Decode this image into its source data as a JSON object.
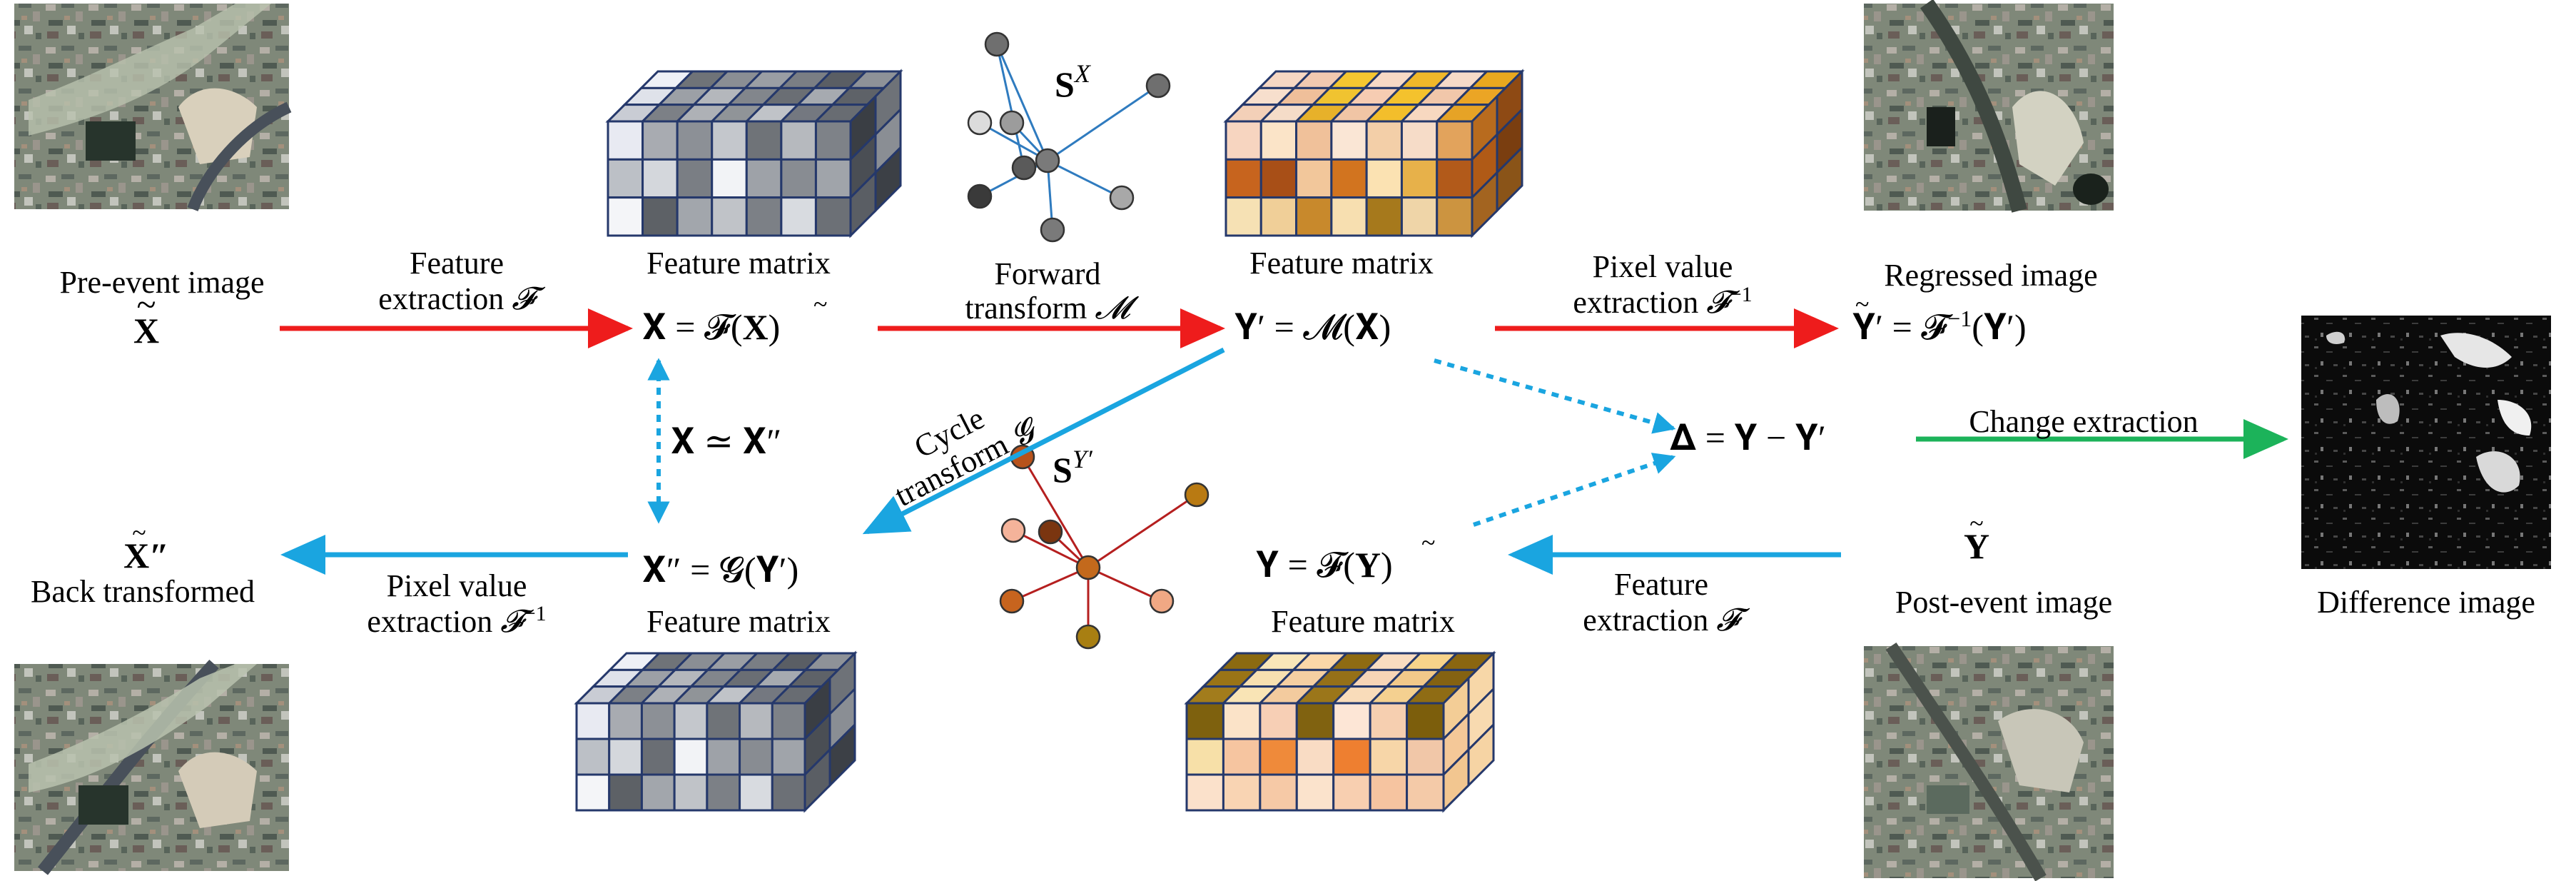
{
  "labels": {
    "pre_event_image": "Pre-event image",
    "post_event_image": "Post-event image",
    "back_transformed": "Back transformed",
    "regressed_image": "Regressed image",
    "difference_image": "Difference image",
    "feature_matrix": "Feature matrix",
    "feature_extraction_line1": "Feature",
    "feature_extraction_line2": "extraction",
    "feature_symbol": "𝓕",
    "pixel_value_line1": "Pixel value",
    "pixel_value_line2": "extraction",
    "pixel_symbol": "𝓕",
    "inverse_sup": "−1",
    "forward_line1": "Forward",
    "forward_line2": "transform",
    "forward_symbol": "𝓜",
    "cycle_line1": "Cycle",
    "cycle_line2": "transform",
    "cycle_symbol": "𝓖",
    "change_extraction": "Change extraction"
  },
  "math": {
    "x_tilde": "X",
    "y_tilde": "Y",
    "x_dd_tilde": "X″",
    "eq_x": "𝐗 = 𝓕(",
    "eq_x_arg": "X",
    "eq_x_close": ")",
    "eq_yprime": "𝐘′ = 𝓜(𝐗)",
    "eq_regressed_lhs": "𝐘′",
    "eq_regressed_rhs": " = 𝓕",
    "eq_regressed_arg": "(𝐘′)",
    "eq_delta": "𝚫 = 𝐘 − 𝐘′",
    "eq_sim": "𝐗 ≃ 𝐗″",
    "eq_xdd": "𝐗″ = 𝓖(𝐘′)",
    "eq_y": "𝐘 = 𝓕(",
    "eq_y_arg": "Y",
    "eq_y_close": ")",
    "s_x_base": "S",
    "s_x_sup": "X",
    "s_y_base": "S",
    "s_y_sup": "Y′"
  },
  "colors": {
    "red_arrow": "#ee1c1c",
    "blue_arrow": "#1aa5e0",
    "green_arrow": "#1cb35a",
    "cube_edge": "#25386b",
    "graph_blue_edge": "#2f7bbf",
    "graph_red_edge": "#b51f1f"
  },
  "matrices": {
    "grey_top": [
      [
        "#eef0f6",
        "#6f7378",
        "#8a8e94",
        "#9a9ea4",
        "#7a7e84",
        "#5a5e64",
        "#8e9298"
      ],
      [
        "#dfe2ea",
        "#9ca0a6",
        "#b4b7bc",
        "#82868c",
        "#6a6e74",
        "#a6aab0",
        "#5e6268"
      ],
      [
        "#c9ccd4",
        "#7c8086",
        "#aeb1b6",
        "#909498",
        "#c0c3c8",
        "#747880",
        "#686c72"
      ]
    ],
    "grey_front": [
      [
        "#e8eaf2",
        "#a8abb1",
        "#8c9096",
        "#c4c7cc",
        "#6f7378",
        "#b6b9be",
        "#7e8288"
      ],
      [
        "#bcc0c6",
        "#d4d7dc",
        "#7a7e84",
        "#f2f3f6",
        "#9ea2a8",
        "#888c92",
        "#a0a4aa"
      ],
      [
        "#f4f5f8",
        "#5d6166",
        "#a2a6ac",
        "#c0c3c8",
        "#7c8086",
        "#d8dbe0",
        "#6c7076"
      ]
    ],
    "grey_right": [
      "#3a3e44",
      "#6e7278",
      "#4a4e54",
      "#8a8e94",
      "#5a5e64",
      "#3c4046"
    ],
    "grey2_front": [
      [
        "#e8eaf2",
        "#a8abb1",
        "#8c9096",
        "#c4c7cc",
        "#6f7378",
        "#b6b9be",
        "#7e8288"
      ],
      [
        "#bcc0c6",
        "#d4d7dc",
        "#6a6e74",
        "#f2f3f6",
        "#9ea2a8",
        "#888c92",
        "#a0a4aa"
      ],
      [
        "#f4f5f8",
        "#5d6166",
        "#a2a6ac",
        "#c0c3c8",
        "#7c8086",
        "#d8dbe0",
        "#6c7076"
      ]
    ],
    "orange_top": [
      [
        "#f6d7c3",
        "#f2c9b0",
        "#f5c630",
        "#f7d9c5",
        "#f0b82a",
        "#f6dac8",
        "#e9a81f"
      ],
      [
        "#f7dfcd",
        "#efbf9a",
        "#f0c330",
        "#f6ccb2",
        "#f4c22d",
        "#f1c7aa",
        "#eba525"
      ],
      [
        "#f3d0b8",
        "#f5dcc8",
        "#e7b12a",
        "#f0c5a5",
        "#f3be2b",
        "#f7d8c0",
        "#e6a326"
      ]
    ],
    "orange_front": [
      [
        "#f7d5c0",
        "#fbe4c8",
        "#f0c19a",
        "#fae6d5",
        "#f3cfa8",
        "#f6dcc8",
        "#e2a35c"
      ],
      [
        "#c7641e",
        "#a84f17",
        "#f2c79b",
        "#d2741f",
        "#fbe2b2",
        "#e7b14a",
        "#b25a1a"
      ],
      [
        "#f6e1b4",
        "#f0cf98",
        "#c8892c",
        "#f7dfb0",
        "#a6791c",
        "#efd5a8",
        "#cc9440"
      ]
    ],
    "orange_right": [
      "#b86b1e",
      "#8e4a14",
      "#b05a16",
      "#7a3e10",
      "#a36420",
      "#8a5418"
    ],
    "warm_top": [
      [
        "#8b6a10",
        "#f9e6b8",
        "#fbd7a8",
        "#8e6b12",
        "#f9dcc0",
        "#f7d38a",
        "#8a6610"
      ],
      [
        "#9a7416",
        "#f7e0b0",
        "#f5cfa2",
        "#957018",
        "#f7d5b6",
        "#f2c98a",
        "#846212"
      ],
      [
        "#a27c1c",
        "#f9e4b5",
        "#f3cb9e",
        "#9b761a",
        "#f9dcba",
        "#f4d090",
        "#8f6c14"
      ]
    ],
    "warm_front": [
      [
        "#7e610e",
        "#fbe3c8",
        "#f7cfb5",
        "#806210",
        "#fde6d6",
        "#f6cfb0",
        "#7c5e0c"
      ],
      [
        "#f7e0a8",
        "#f6c5a0",
        "#ef8a3a",
        "#f9dcc4",
        "#ee7f30",
        "#f7d6a8",
        "#f1c7a8"
      ],
      [
        "#fbe1cb",
        "#f9d4b3",
        "#f6c9a6",
        "#fbe3cc",
        "#f8cfb0",
        "#f6c4a0",
        "#f4caa8"
      ]
    ],
    "warm_right": [
      "#f3cd96",
      "#f7d7a8",
      "#f4c898",
      "#f8dab0",
      "#f2c690",
      "#f6d4a4"
    ]
  },
  "graphs": {
    "sx_nodes": [
      [
        "#6f6f6f",
        "#6f6f6f"
      ],
      [
        "#6f6f6f",
        "#6f6f6f"
      ],
      [
        "#dcdcdc",
        "#9c9c9c"
      ],
      [
        "#9c9c9c",
        "#8c8c8c"
      ],
      [
        "#3a3a3a",
        "#3a3a3a"
      ],
      [
        "#7a7a7a",
        "#7a7a7a"
      ],
      [
        "#a8a8a8",
        "#a8a8a8"
      ],
      [
        "#5a5a5a",
        "#5a5a5a"
      ]
    ],
    "sy_nodes": [
      [
        "#b7521b",
        "#9c4416"
      ],
      [
        "#f4b39a",
        "#e09a80"
      ],
      [
        "#7a3510",
        "#6a2c0c"
      ],
      [
        "#b97a12",
        "#9a660e"
      ],
      [
        "#c7641e",
        "#a85216"
      ],
      [
        "#f0a884",
        "#d88e6a"
      ],
      [
        "#a87f12",
        "#8e6a0e"
      ],
      [
        "#c3691c",
        "#a65616"
      ]
    ]
  }
}
